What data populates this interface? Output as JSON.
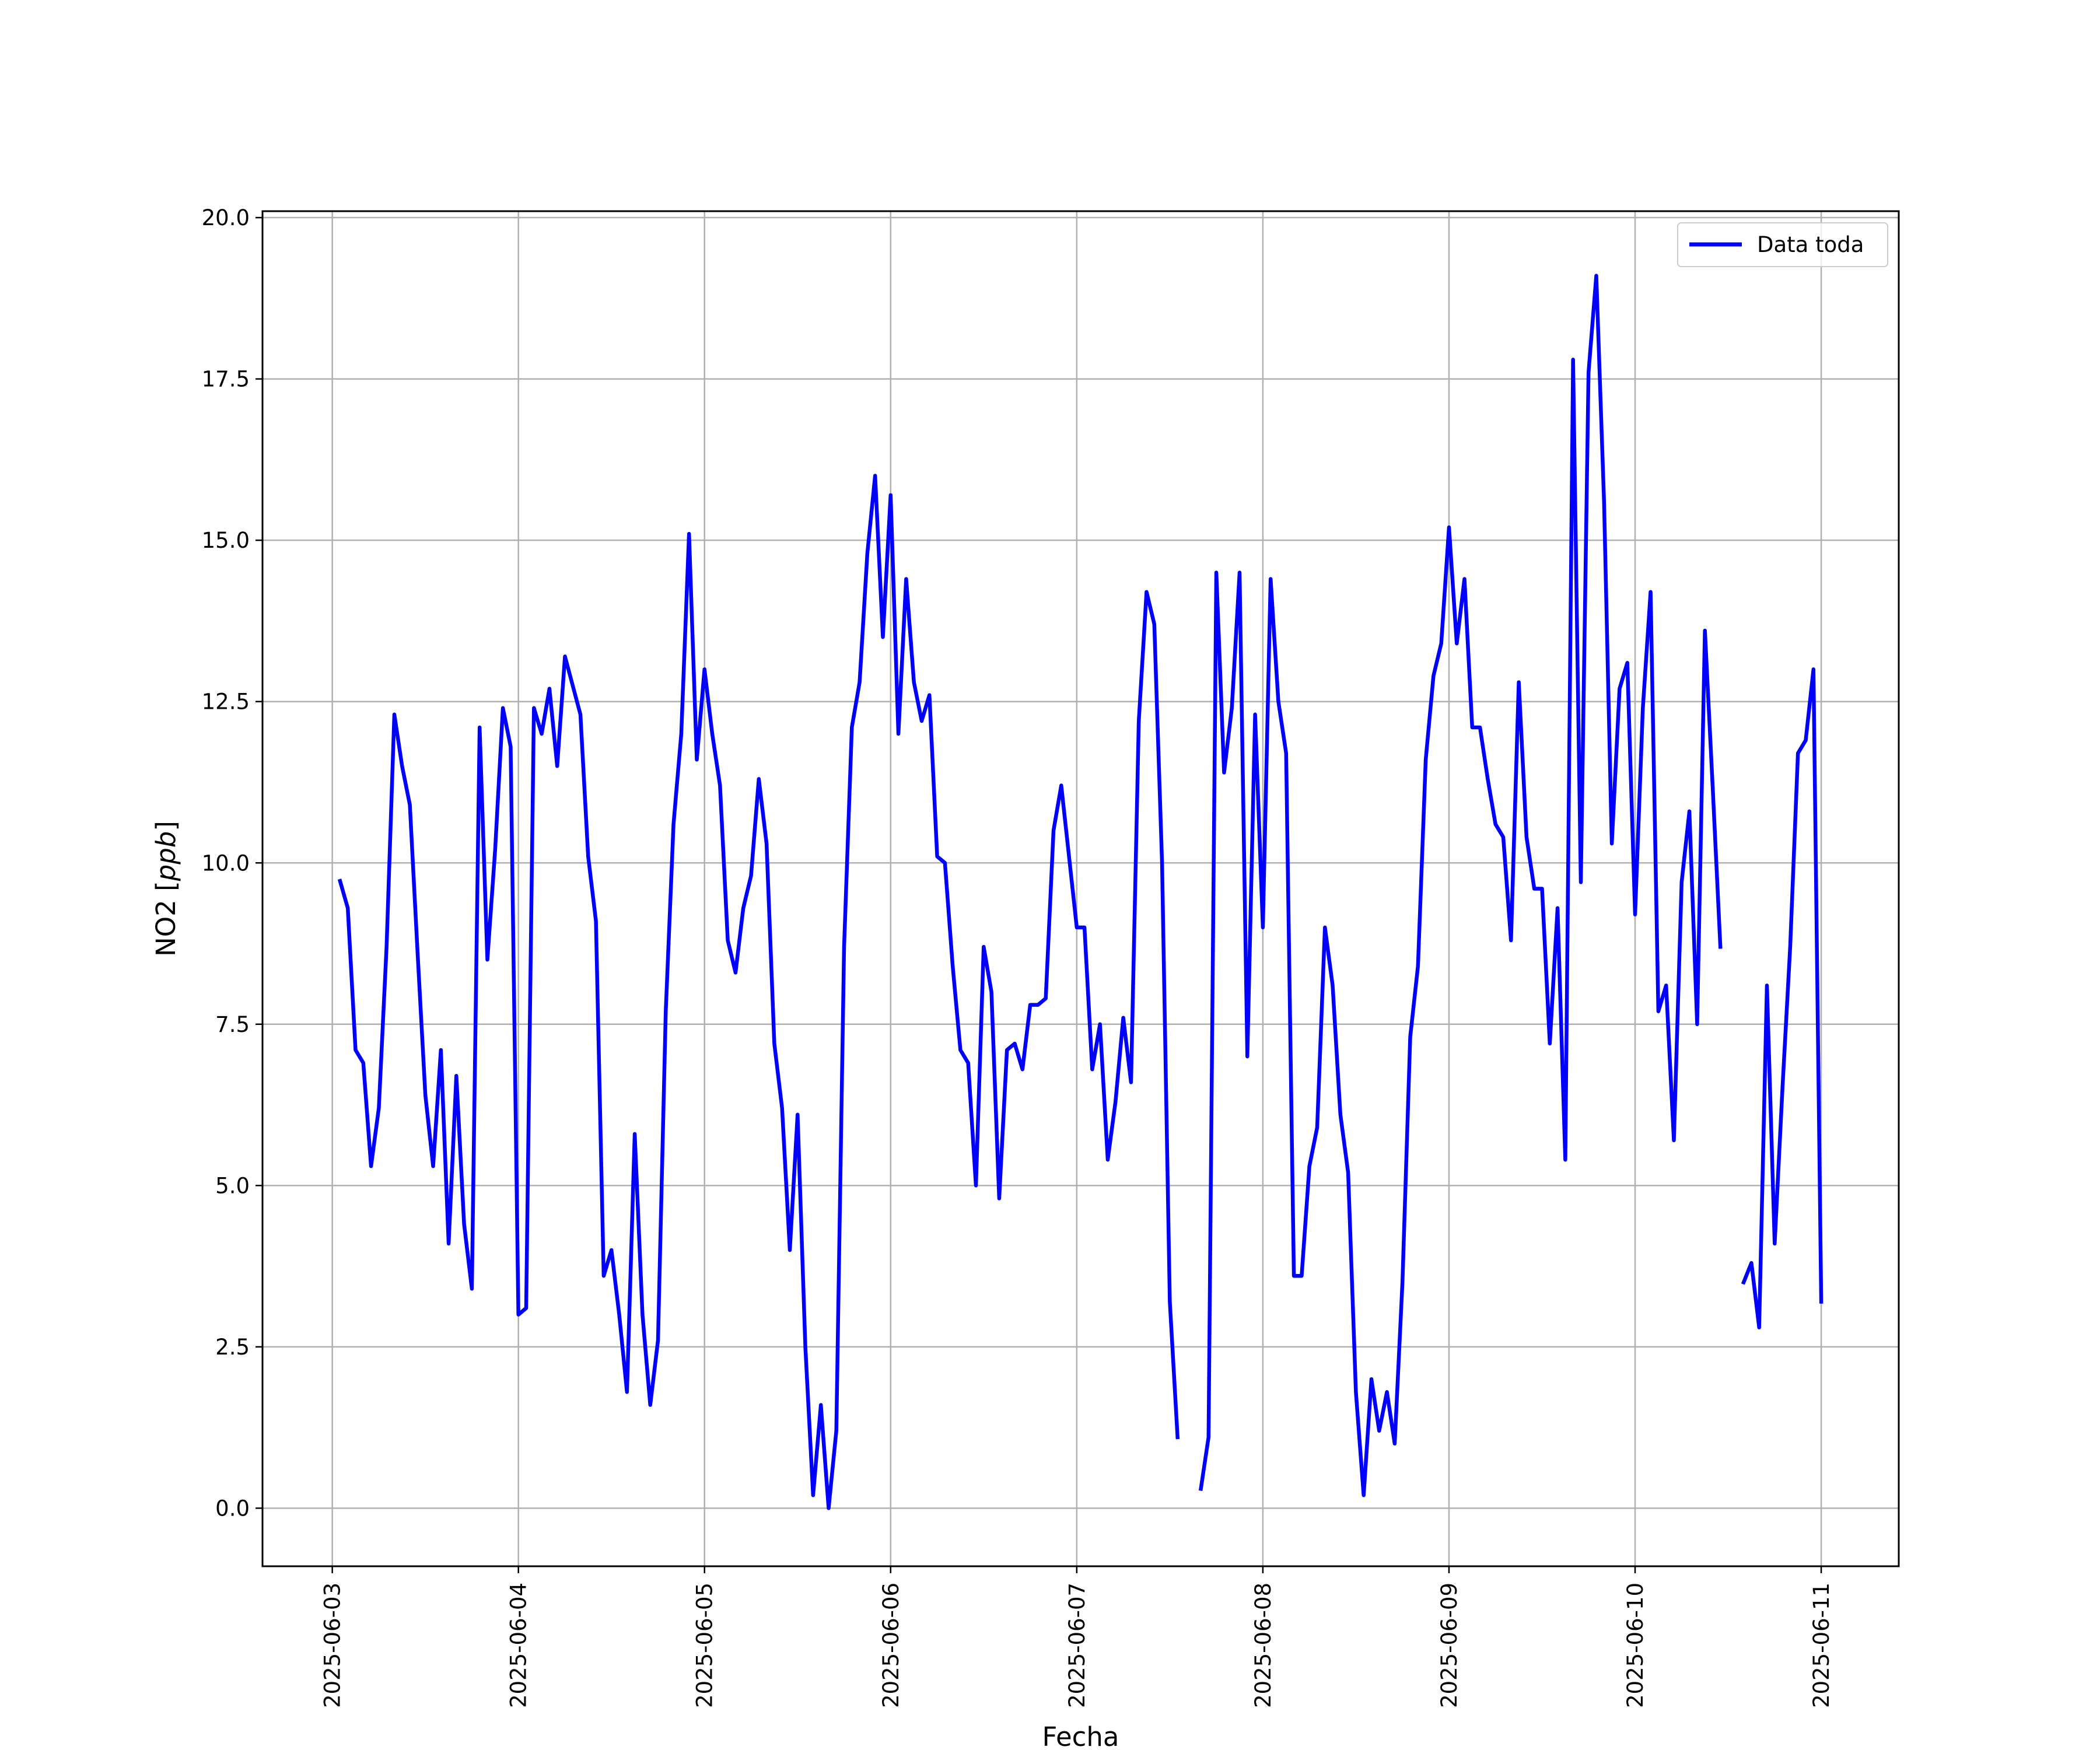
{
  "chart_data": {
    "type": "line",
    "title": "",
    "xlabel": "Fecha",
    "ylabel_main": "NO2 [",
    "ylabel_unit": "ppb",
    "ylabel_close": "]",
    "x_is_date": true,
    "xlim": [
      "2025-06-02T15:00",
      "2025-06-11T10:00"
    ],
    "ylim": [
      -0.9,
      20.1
    ],
    "x_ticks": [
      "2025-06-03",
      "2025-06-04",
      "2025-06-05",
      "2025-06-06",
      "2025-06-07",
      "2025-06-08",
      "2025-06-09",
      "2025-06-10",
      "2025-06-11"
    ],
    "y_ticks": [
      0.0,
      2.5,
      5.0,
      7.5,
      10.0,
      12.5,
      15.0,
      17.5,
      20.0
    ],
    "grid": true,
    "legend_position": "top-right",
    "colors": {
      "line": "#0000ff",
      "grid": "#b0b0b0",
      "axes": "#000000"
    },
    "series": [
      {
        "name": "Data toda",
        "segments": [
          [
            [
              "2025-06-03T01:00",
              9.72
            ],
            [
              "2025-06-03T02:00",
              9.3
            ],
            [
              "2025-06-03T03:00",
              7.1
            ],
            [
              "2025-06-03T04:00",
              6.9
            ],
            [
              "2025-06-03T05:00",
              5.3
            ],
            [
              "2025-06-03T06:00",
              6.2
            ],
            [
              "2025-06-03T07:00",
              8.7
            ],
            [
              "2025-06-03T08:00",
              12.3
            ],
            [
              "2025-06-03T09:00",
              11.5
            ],
            [
              "2025-06-03T10:00",
              10.9
            ],
            [
              "2025-06-03T11:00",
              8.6
            ],
            [
              "2025-06-03T12:00",
              6.4
            ],
            [
              "2025-06-03T13:00",
              5.3
            ],
            [
              "2025-06-03T14:00",
              7.1
            ],
            [
              "2025-06-03T15:00",
              4.1
            ],
            [
              "2025-06-03T16:00",
              6.7
            ],
            [
              "2025-06-03T17:00",
              4.4
            ],
            [
              "2025-06-03T18:00",
              3.4
            ],
            [
              "2025-06-03T19:00",
              12.1
            ],
            [
              "2025-06-03T20:00",
              8.5
            ],
            [
              "2025-06-03T21:00",
              10.2
            ],
            [
              "2025-06-03T22:00",
              12.4
            ],
            [
              "2025-06-03T23:00",
              11.8
            ],
            [
              "2025-06-04T00:00",
              3.0
            ],
            [
              "2025-06-04T01:00",
              3.1
            ],
            [
              "2025-06-04T02:00",
              12.4
            ],
            [
              "2025-06-04T03:00",
              12.0
            ],
            [
              "2025-06-04T04:00",
              12.7
            ],
            [
              "2025-06-04T05:00",
              11.5
            ],
            [
              "2025-06-04T06:00",
              13.2
            ],
            [
              "2025-06-04T08:00",
              12.3
            ],
            [
              "2025-06-04T09:00",
              10.1
            ],
            [
              "2025-06-04T10:00",
              9.1
            ],
            [
              "2025-06-04T11:00",
              3.6
            ],
            [
              "2025-06-04T12:00",
              4.0
            ],
            [
              "2025-06-04T13:00",
              3.0
            ],
            [
              "2025-06-04T14:00",
              1.8
            ],
            [
              "2025-06-04T15:00",
              5.8
            ],
            [
              "2025-06-04T16:00",
              3.0
            ],
            [
              "2025-06-04T17:00",
              1.6
            ],
            [
              "2025-06-04T18:00",
              2.6
            ],
            [
              "2025-06-04T19:00",
              7.7
            ],
            [
              "2025-06-04T20:00",
              10.6
            ],
            [
              "2025-06-04T21:00",
              12.0
            ],
            [
              "2025-06-04T22:00",
              15.1
            ],
            [
              "2025-06-04T23:00",
              11.6
            ],
            [
              "2025-06-05T00:00",
              13.0
            ],
            [
              "2025-06-05T01:00",
              12.0
            ],
            [
              "2025-06-05T02:00",
              11.2
            ],
            [
              "2025-06-05T03:00",
              8.8
            ],
            [
              "2025-06-05T04:00",
              8.3
            ],
            [
              "2025-06-05T05:00",
              9.3
            ],
            [
              "2025-06-05T06:00",
              9.8
            ],
            [
              "2025-06-05T07:00",
              11.3
            ],
            [
              "2025-06-05T08:00",
              10.3
            ],
            [
              "2025-06-05T09:00",
              7.2
            ],
            [
              "2025-06-05T10:00",
              6.2
            ],
            [
              "2025-06-05T11:00",
              4.0
            ],
            [
              "2025-06-05T12:00",
              6.1
            ],
            [
              "2025-06-05T13:00",
              2.5
            ],
            [
              "2025-06-05T14:00",
              0.2
            ],
            [
              "2025-06-05T15:00",
              1.6
            ],
            [
              "2025-06-05T16:00",
              0.0
            ],
            [
              "2025-06-05T17:00",
              1.2
            ],
            [
              "2025-06-05T18:00",
              8.7
            ],
            [
              "2025-06-05T19:00",
              12.1
            ],
            [
              "2025-06-05T20:00",
              12.8
            ],
            [
              "2025-06-05T21:00",
              14.8
            ],
            [
              "2025-06-05T22:00",
              16.0
            ],
            [
              "2025-06-05T23:00",
              13.5
            ],
            [
              "2025-06-06T00:00",
              15.7
            ],
            [
              "2025-06-06T01:00",
              12.0
            ],
            [
              "2025-06-06T02:00",
              14.4
            ],
            [
              "2025-06-06T03:00",
              12.8
            ],
            [
              "2025-06-06T04:00",
              12.2
            ],
            [
              "2025-06-06T05:00",
              12.6
            ],
            [
              "2025-06-06T06:00",
              10.1
            ],
            [
              "2025-06-06T07:00",
              10.0
            ],
            [
              "2025-06-06T08:00",
              8.4
            ],
            [
              "2025-06-06T09:00",
              7.1
            ],
            [
              "2025-06-06T10:00",
              6.9
            ],
            [
              "2025-06-06T11:00",
              5.0
            ],
            [
              "2025-06-06T12:00",
              8.7
            ],
            [
              "2025-06-06T13:00",
              8.0
            ],
            [
              "2025-06-06T14:00",
              4.8
            ],
            [
              "2025-06-06T15:00",
              7.1
            ],
            [
              "2025-06-06T16:00",
              7.2
            ],
            [
              "2025-06-06T17:00",
              6.8
            ],
            [
              "2025-06-06T18:00",
              7.8
            ],
            [
              "2025-06-06T19:00",
              7.8
            ],
            [
              "2025-06-06T20:00",
              7.9
            ],
            [
              "2025-06-06T21:00",
              10.5
            ],
            [
              "2025-06-06T22:00",
              11.2
            ],
            [
              "2025-06-06T23:00",
              10.1
            ],
            [
              "2025-06-07T00:00",
              9.0
            ],
            [
              "2025-06-07T01:00",
              9.0
            ],
            [
              "2025-06-07T02:00",
              6.8
            ],
            [
              "2025-06-07T03:00",
              7.5
            ],
            [
              "2025-06-07T04:00",
              5.4
            ],
            [
              "2025-06-07T05:00",
              6.3
            ],
            [
              "2025-06-07T06:00",
              7.6
            ],
            [
              "2025-06-07T07:00",
              6.6
            ],
            [
              "2025-06-07T08:00",
              12.2
            ],
            [
              "2025-06-07T09:00",
              14.2
            ],
            [
              "2025-06-07T10:00",
              13.7
            ],
            [
              "2025-06-07T11:00",
              10.0
            ],
            [
              "2025-06-07T12:00",
              3.2
            ],
            [
              "2025-06-07T13:00",
              1.1
            ]
          ],
          [
            [
              "2025-06-07T16:00",
              0.3
            ],
            [
              "2025-06-07T17:00",
              1.1
            ],
            [
              "2025-06-07T18:00",
              14.5
            ],
            [
              "2025-06-07T19:00",
              11.4
            ],
            [
              "2025-06-07T20:00",
              12.4
            ],
            [
              "2025-06-07T21:00",
              14.5
            ],
            [
              "2025-06-07T22:00",
              7.0
            ],
            [
              "2025-06-07T23:00",
              12.3
            ],
            [
              "2025-06-08T00:00",
              9.0
            ],
            [
              "2025-06-08T01:00",
              14.4
            ],
            [
              "2025-06-08T02:00",
              12.5
            ],
            [
              "2025-06-08T03:00",
              11.7
            ],
            [
              "2025-06-08T04:00",
              3.6
            ],
            [
              "2025-06-08T05:00",
              3.6
            ],
            [
              "2025-06-08T06:00",
              5.3
            ],
            [
              "2025-06-08T07:00",
              5.9
            ],
            [
              "2025-06-08T08:00",
              9.0
            ],
            [
              "2025-06-08T09:00",
              8.1
            ],
            [
              "2025-06-08T10:00",
              6.1
            ],
            [
              "2025-06-08T11:00",
              5.2
            ],
            [
              "2025-06-08T12:00",
              1.8
            ],
            [
              "2025-06-08T13:00",
              0.2
            ],
            [
              "2025-06-08T14:00",
              2.0
            ],
            [
              "2025-06-08T15:00",
              1.2
            ],
            [
              "2025-06-08T16:00",
              1.8
            ],
            [
              "2025-06-08T17:00",
              1.0
            ],
            [
              "2025-06-08T18:00",
              3.5
            ],
            [
              "2025-06-08T19:00",
              7.3
            ],
            [
              "2025-06-08T20:00",
              8.4
            ],
            [
              "2025-06-08T21:00",
              11.6
            ],
            [
              "2025-06-08T22:00",
              12.9
            ],
            [
              "2025-06-08T23:00",
              13.4
            ],
            [
              "2025-06-09T00:00",
              15.2
            ],
            [
              "2025-06-09T01:00",
              13.4
            ],
            [
              "2025-06-09T02:00",
              14.4
            ],
            [
              "2025-06-09T03:00",
              12.1
            ],
            [
              "2025-06-09T04:00",
              12.1
            ],
            [
              "2025-06-09T05:00",
              11.3
            ],
            [
              "2025-06-09T06:00",
              10.6
            ],
            [
              "2025-06-09T07:00",
              10.4
            ],
            [
              "2025-06-09T08:00",
              8.8
            ],
            [
              "2025-06-09T09:00",
              12.8
            ],
            [
              "2025-06-09T10:00",
              10.4
            ],
            [
              "2025-06-09T11:00",
              9.6
            ],
            [
              "2025-06-09T12:00",
              9.6
            ],
            [
              "2025-06-09T13:00",
              7.2
            ],
            [
              "2025-06-09T14:00",
              9.3
            ],
            [
              "2025-06-09T15:00",
              5.4
            ],
            [
              "2025-06-09T16:00",
              17.8
            ],
            [
              "2025-06-09T17:00",
              9.7
            ],
            [
              "2025-06-09T18:00",
              17.6
            ],
            [
              "2025-06-09T19:00",
              19.1
            ],
            [
              "2025-06-09T20:00",
              15.6
            ],
            [
              "2025-06-09T21:00",
              10.3
            ],
            [
              "2025-06-09T22:00",
              12.7
            ],
            [
              "2025-06-09T23:00",
              13.1
            ],
            [
              "2025-06-10T00:00",
              9.2
            ],
            [
              "2025-06-10T01:00",
              12.4
            ],
            [
              "2025-06-10T02:00",
              14.2
            ],
            [
              "2025-06-10T03:00",
              7.7
            ],
            [
              "2025-06-10T04:00",
              8.1
            ],
            [
              "2025-06-10T05:00",
              5.7
            ],
            [
              "2025-06-10T06:00",
              9.7
            ],
            [
              "2025-06-10T07:00",
              10.8
            ],
            [
              "2025-06-10T08:00",
              7.5
            ],
            [
              "2025-06-10T09:00",
              13.6
            ],
            [
              "2025-06-10T10:00",
              11.2
            ],
            [
              "2025-06-10T11:00",
              8.7
            ]
          ],
          [
            [
              "2025-06-10T14:00",
              3.5
            ],
            [
              "2025-06-10T15:00",
              3.8
            ],
            [
              "2025-06-10T16:00",
              2.8
            ],
            [
              "2025-06-10T17:00",
              8.1
            ],
            [
              "2025-06-10T18:00",
              4.1
            ],
            [
              "2025-06-10T19:00",
              6.5
            ],
            [
              "2025-06-10T20:00",
              8.7
            ],
            [
              "2025-06-10T21:00",
              11.7
            ],
            [
              "2025-06-10T22:00",
              11.9
            ],
            [
              "2025-06-10T23:00",
              13.0
            ],
            [
              "2025-06-11T00:00",
              3.2
            ]
          ]
        ]
      }
    ]
  }
}
